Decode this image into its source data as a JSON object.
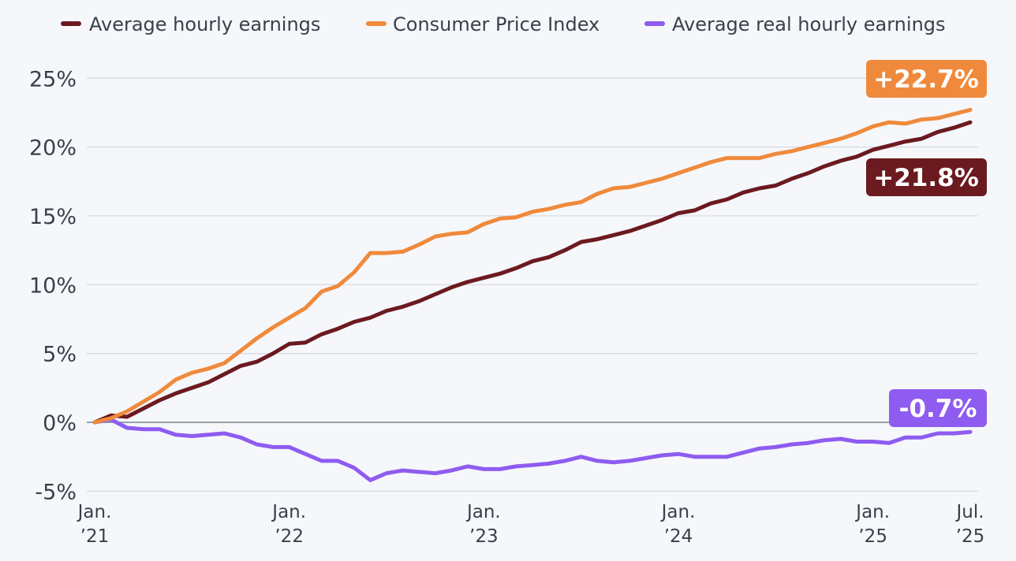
{
  "chart_data": {
    "type": "line",
    "title": "",
    "xlabel": "",
    "ylabel": "",
    "ylim": [
      -5,
      25
    ],
    "y_ticks": [
      25,
      20,
      15,
      10,
      5,
      0,
      -5
    ],
    "y_tick_labels": [
      "25%",
      "20%",
      "15%",
      "10%",
      "5%",
      "0%",
      "-5%"
    ],
    "x_ticks": [
      {
        "month": 0,
        "line1": "Jan.",
        "line2": "’21"
      },
      {
        "month": 12,
        "line1": "Jan.",
        "line2": "’22"
      },
      {
        "month": 24,
        "line1": "Jan.",
        "line2": "’23"
      },
      {
        "month": 36,
        "line1": "Jan.",
        "line2": "’24"
      },
      {
        "month": 48,
        "line1": "Jan.",
        "line2": "’25"
      },
      {
        "month": 54,
        "line1": "Jul.",
        "line2": "’25"
      }
    ],
    "x_note": "months since Jan. 2021 (0 = Jan. '21, 54 = Jul. '25)",
    "series": [
      {
        "name": "Average hourly earnings",
        "color": "#6b1a1f",
        "end_label": "+21.8%",
        "values": [
          0,
          0.5,
          0.4,
          1.0,
          1.6,
          2.1,
          2.5,
          2.9,
          3.5,
          4.1,
          4.4,
          5.0,
          5.7,
          5.8,
          6.4,
          6.8,
          7.3,
          7.6,
          8.1,
          8.4,
          8.8,
          9.3,
          9.8,
          10.2,
          10.5,
          10.8,
          11.2,
          11.7,
          12.0,
          12.5,
          13.1,
          13.3,
          13.6,
          13.9,
          14.3,
          14.7,
          15.2,
          15.4,
          15.9,
          16.2,
          16.7,
          17.0,
          17.2,
          17.7,
          18.1,
          18.6,
          19.0,
          19.3,
          19.8,
          20.1,
          20.4,
          20.6,
          21.1,
          21.4,
          21.8
        ]
      },
      {
        "name": "Consumer Price Index",
        "color": "#ef8a3c",
        "end_label": "+22.7%",
        "values": [
          0,
          0.3,
          0.8,
          1.5,
          2.2,
          3.1,
          3.6,
          3.9,
          4.3,
          5.2,
          6.1,
          6.9,
          7.6,
          8.3,
          9.5,
          9.9,
          10.9,
          12.3,
          12.3,
          12.4,
          12.9,
          13.5,
          13.7,
          13.8,
          14.4,
          14.8,
          14.9,
          15.3,
          15.5,
          15.8,
          16.0,
          16.6,
          17.0,
          17.1,
          17.4,
          17.7,
          18.1,
          18.5,
          18.9,
          19.2,
          19.2,
          19.2,
          19.5,
          19.7,
          20.0,
          20.3,
          20.6,
          21.0,
          21.5,
          21.8,
          21.7,
          22.0,
          22.1,
          22.4,
          22.7
        ]
      },
      {
        "name": "Average real hourly earnings",
        "color": "#8e5cf0",
        "end_label": "-0.7%",
        "values": [
          0,
          0.2,
          -0.4,
          -0.5,
          -0.5,
          -0.9,
          -1.0,
          -0.9,
          -0.8,
          -1.1,
          -1.6,
          -1.8,
          -1.8,
          -2.3,
          -2.8,
          -2.8,
          -3.3,
          -4.2,
          -3.7,
          -3.5,
          -3.6,
          -3.7,
          -3.5,
          -3.2,
          -3.4,
          -3.4,
          -3.2,
          -3.1,
          -3.0,
          -2.8,
          -2.5,
          -2.8,
          -2.9,
          -2.8,
          -2.6,
          -2.4,
          -2.3,
          -2.5,
          -2.5,
          -2.5,
          -2.2,
          -1.9,
          -1.8,
          -1.6,
          -1.5,
          -1.3,
          -1.2,
          -1.4,
          -1.4,
          -1.5,
          -1.1,
          -1.1,
          -0.8,
          -0.8,
          -0.7
        ]
      }
    ],
    "legend_position": "top"
  }
}
